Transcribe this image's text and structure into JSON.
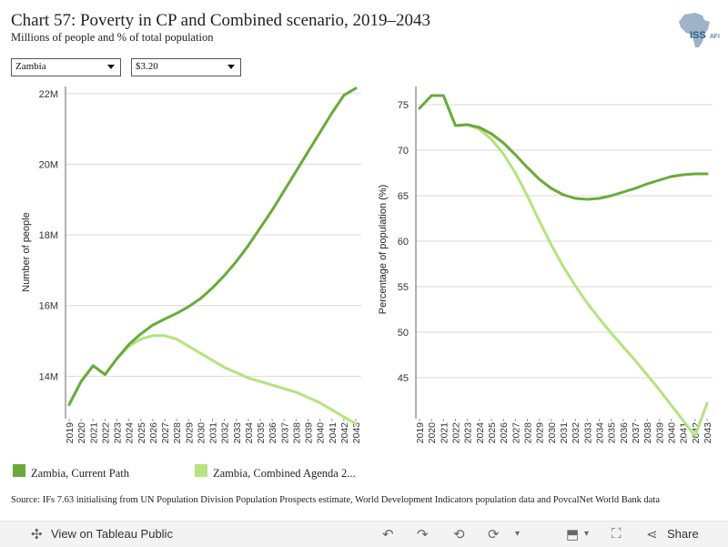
{
  "header": {
    "title": "Chart 57: Poverty in CP and Combined scenario, 2019–2043",
    "subtitle": "Millions of people and % of total population",
    "logo_text": "ISS",
    "logo_suffix": "AFI"
  },
  "filters": {
    "country": "Zambia",
    "threshold": "$3.20"
  },
  "colors": {
    "current_path": "#6aaa3a",
    "combined": "#b5e37e",
    "grid": "#d9d9d9",
    "axis": "#666666"
  },
  "chart_data": [
    {
      "type": "line",
      "ylabel": "Number of people",
      "ylim": [
        12.8,
        22.2
      ],
      "yticks": [
        14,
        16,
        18,
        20,
        22
      ],
      "ytick_labels": [
        "14M",
        "16M",
        "18M",
        "20M",
        "22M"
      ],
      "x": [
        2019,
        2020,
        2021,
        2022,
        2023,
        2024,
        2025,
        2026,
        2027,
        2028,
        2029,
        2030,
        2031,
        2032,
        2033,
        2034,
        2035,
        2036,
        2037,
        2038,
        2039,
        2040,
        2041,
        2042,
        2043
      ],
      "series": [
        {
          "name": "Zambia, Current Path",
          "color": "#6aaa3a",
          "values": [
            13.2,
            13.85,
            14.3,
            14.05,
            14.5,
            14.9,
            15.2,
            15.45,
            15.62,
            15.78,
            15.97,
            16.2,
            16.5,
            16.85,
            17.25,
            17.7,
            18.2,
            18.7,
            19.25,
            19.8,
            20.35,
            20.9,
            21.45,
            21.95,
            22.15
          ]
        },
        {
          "name": "Zambia, Combined Agenda 2...",
          "color": "#b5e37e",
          "values": [
            13.2,
            13.85,
            14.3,
            14.05,
            14.5,
            14.85,
            15.05,
            15.15,
            15.15,
            15.05,
            14.85,
            14.65,
            14.45,
            14.25,
            14.1,
            13.95,
            13.85,
            13.75,
            13.65,
            13.55,
            13.4,
            13.25,
            13.05,
            12.85,
            12.65
          ]
        }
      ]
    },
    {
      "type": "line",
      "ylabel": "Percentage of population (%)",
      "ylim": [
        40.5,
        77
      ],
      "yticks": [
        45,
        50,
        55,
        60,
        65,
        70,
        75
      ],
      "ytick_labels": [
        "45",
        "50",
        "55",
        "60",
        "65",
        "70",
        "75"
      ],
      "x": [
        2019,
        2020,
        2021,
        2022,
        2023,
        2024,
        2025,
        2026,
        2027,
        2028,
        2029,
        2030,
        2031,
        2032,
        2033,
        2034,
        2035,
        2036,
        2037,
        2038,
        2039,
        2040,
        2041,
        2042,
        2043
      ],
      "series": [
        {
          "name": "Zambia, Current Path",
          "color": "#6aaa3a",
          "values": [
            74.6,
            76.0,
            76.0,
            72.7,
            72.8,
            72.5,
            71.8,
            70.8,
            69.5,
            68.1,
            66.8,
            65.8,
            65.1,
            64.7,
            64.6,
            64.7,
            65.0,
            65.4,
            65.8,
            66.3,
            66.7,
            67.1,
            67.3,
            67.4,
            67.4
          ]
        },
        {
          "name": "Zambia, Combined Agenda 2...",
          "color": "#b5e37e",
          "values": [
            74.6,
            76.0,
            76.0,
            72.7,
            72.8,
            72.3,
            71.2,
            69.6,
            67.5,
            65.0,
            62.2,
            59.6,
            57.2,
            55.1,
            53.2,
            51.5,
            49.9,
            48.4,
            46.9,
            45.3,
            43.7,
            42.0,
            40.3,
            38.6,
            42.2
          ]
        }
      ]
    }
  ],
  "legend": {
    "current_path_label": "Zambia, Current Path",
    "combined_label": "Zambia, Combined Agenda 2..."
  },
  "source_text": "Source: IFs 7.63 initialising from UN Population Division Population Prospects estimate, World Development Indicators population data and PovcalNet World Bank data",
  "toolbar": {
    "view_label": "View on Tableau Public",
    "share_label": "Share",
    "undo_icon": "undo-icon",
    "redo_icon": "redo-icon",
    "revert_icon": "revert-icon",
    "refresh_icon": "refresh-icon",
    "download_icon": "download-icon",
    "fullscreen_icon": "fullscreen-icon",
    "share_icon": "share-icon",
    "tableau_icon": "tableau-logo-icon"
  }
}
